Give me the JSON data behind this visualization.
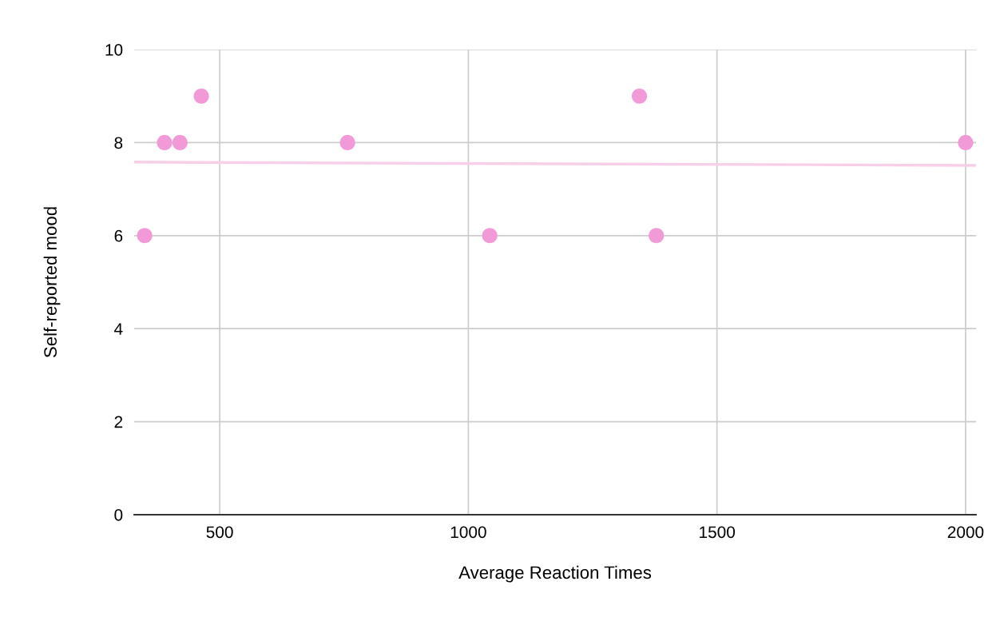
{
  "chart_data": {
    "type": "scatter",
    "xlabel": "Average Reaction Times",
    "ylabel": "Self-reported mood",
    "xlim": [
      328,
      2021
    ],
    "xticks": [
      500,
      1000,
      1500,
      2000
    ],
    "ylim": [
      0,
      10
    ],
    "yticks": [
      0,
      2,
      4,
      6,
      8,
      10
    ],
    "grid": true,
    "series": [
      {
        "color": "#f29ad8",
        "marker": "circle",
        "x": [
          349,
          389,
          420,
          463,
          757,
          1043,
          1344,
          1378,
          2000
        ],
        "values": [
          6,
          8,
          8,
          9,
          8,
          6,
          9,
          6,
          8
        ]
      },
      {
        "type": "line",
        "color": "#f8cfe9",
        "marker": "none",
        "x": [
          328,
          2021
        ],
        "values": [
          7.58,
          7.51
        ]
      }
    ]
  }
}
